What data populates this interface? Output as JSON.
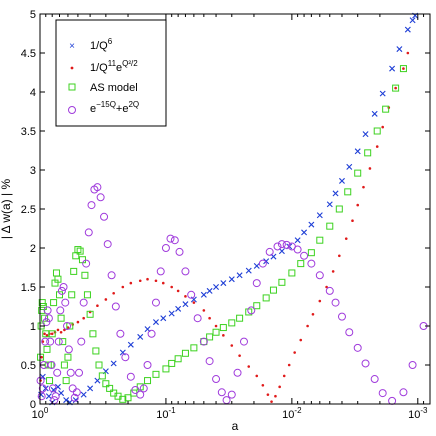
{
  "chart_data": {
    "type": "scatter",
    "title": "",
    "xlabel": "a",
    "ylabel": "| Δ w(a) | %",
    "x_scale": "log-reversed",
    "xlim": [
      1,
      0.0008
    ],
    "ylim": [
      0,
      5
    ],
    "x_ticks": [
      {
        "value": 1,
        "base": "10",
        "exp": "0"
      },
      {
        "value": 0.1,
        "base": "10",
        "exp": "-1"
      },
      {
        "value": 0.01,
        "base": "10",
        "exp": "-2"
      },
      {
        "value": 0.001,
        "base": "10",
        "exp": "-3"
      }
    ],
    "y_ticks": [
      "0",
      "0.5",
      "1",
      "1.5",
      "2",
      "2.5",
      "3",
      "3.5",
      "4",
      "4.5",
      "5"
    ],
    "y_tick_values": [
      0,
      0.5,
      1,
      1.5,
      2,
      2.5,
      3,
      3.5,
      4,
      4.5,
      5
    ],
    "grid": false,
    "legend_position": "top-left",
    "series": [
      {
        "name": "1/Q",
        "name_sup": "6",
        "marker": "x",
        "color": "#1f3fd6",
        "points": [
          [
            0.98,
            0.12
          ],
          [
            0.95,
            0.35
          ],
          [
            0.9,
            0.2
          ],
          [
            0.85,
            0.1
          ],
          [
            0.8,
            0.02
          ],
          [
            0.78,
            0.18
          ],
          [
            0.72,
            0.22
          ],
          [
            0.68,
            0.14
          ],
          [
            0.62,
            0.05
          ],
          [
            0.58,
            0.02
          ],
          [
            0.52,
            0.05
          ],
          [
            0.45,
            0.12
          ],
          [
            0.4,
            0.2
          ],
          [
            0.35,
            0.3
          ],
          [
            0.3,
            0.42
          ],
          [
            0.26,
            0.52
          ],
          [
            0.22,
            0.66
          ],
          [
            0.19,
            0.76
          ],
          [
            0.16,
            0.86
          ],
          [
            0.14,
            0.96
          ],
          [
            0.12,
            1.05
          ],
          [
            0.105,
            1.1
          ],
          [
            0.09,
            1.16
          ],
          [
            0.08,
            1.22
          ],
          [
            0.07,
            1.28
          ],
          [
            0.06,
            1.34
          ],
          [
            0.05,
            1.4
          ],
          [
            0.045,
            1.45
          ],
          [
            0.04,
            1.5
          ],
          [
            0.035,
            1.55
          ],
          [
            0.03,
            1.6
          ],
          [
            0.026,
            1.65
          ],
          [
            0.022,
            1.71
          ],
          [
            0.019,
            1.77
          ],
          [
            0.016,
            1.83
          ],
          [
            0.014,
            1.89
          ],
          [
            0.012,
            1.96
          ],
          [
            0.0105,
            2.02
          ],
          [
            0.009,
            2.1
          ],
          [
            0.008,
            2.2
          ],
          [
            0.007,
            2.3
          ],
          [
            0.006,
            2.42
          ],
          [
            0.005,
            2.56
          ],
          [
            0.0045,
            2.7
          ],
          [
            0.004,
            2.86
          ],
          [
            0.0035,
            3.04
          ],
          [
            0.003,
            3.24
          ],
          [
            0.0026,
            3.46
          ],
          [
            0.0022,
            3.72
          ],
          [
            0.0019,
            3.98
          ],
          [
            0.0016,
            4.3
          ],
          [
            0.0014,
            4.55
          ],
          [
            0.0012,
            4.8
          ],
          [
            0.0011,
            4.92
          ],
          [
            0.00105,
            4.98
          ]
        ]
      },
      {
        "name": "1/Q",
        "name_sup": "11",
        "name_tail": "e",
        "name_tail_sup": "Q²/2",
        "marker": "dot",
        "color": "#e01a1a",
        "points": [
          [
            0.99,
            0.3
          ],
          [
            0.97,
            0.6
          ],
          [
            0.95,
            0.8
          ],
          [
            0.92,
            0.9
          ],
          [
            0.88,
            0.88
          ],
          [
            0.84,
            0.9
          ],
          [
            0.8,
            0.9
          ],
          [
            0.76,
            0.92
          ],
          [
            0.72,
            0.95
          ],
          [
            0.68,
            0.92
          ],
          [
            0.64,
            0.95
          ],
          [
            0.6,
            0.98
          ],
          [
            0.55,
            1.02
          ],
          [
            0.5,
            1.05
          ],
          [
            0.45,
            1.1
          ],
          [
            0.4,
            1.18
          ],
          [
            0.35,
            1.26
          ],
          [
            0.3,
            1.34
          ],
          [
            0.26,
            1.42
          ],
          [
            0.22,
            1.5
          ],
          [
            0.19,
            1.55
          ],
          [
            0.16,
            1.58
          ],
          [
            0.14,
            1.6
          ],
          [
            0.12,
            1.58
          ],
          [
            0.105,
            1.55
          ],
          [
            0.09,
            1.5
          ],
          [
            0.08,
            1.45
          ],
          [
            0.07,
            1.38
          ],
          [
            0.06,
            1.3
          ],
          [
            0.05,
            1.2
          ],
          [
            0.045,
            1.1
          ],
          [
            0.04,
            1.0
          ],
          [
            0.035,
            0.88
          ],
          [
            0.03,
            0.75
          ],
          [
            0.026,
            0.62
          ],
          [
            0.022,
            0.48
          ],
          [
            0.019,
            0.36
          ],
          [
            0.017,
            0.24
          ],
          [
            0.0155,
            0.12
          ],
          [
            0.0145,
            0.03
          ],
          [
            0.0135,
            0.1
          ],
          [
            0.0125,
            0.22
          ],
          [
            0.0115,
            0.36
          ],
          [
            0.0105,
            0.5
          ],
          [
            0.0095,
            0.66
          ],
          [
            0.0085,
            0.82
          ],
          [
            0.0075,
            1.0
          ],
          [
            0.0068,
            1.15
          ],
          [
            0.006,
            1.32
          ],
          [
            0.0053,
            1.5
          ],
          [
            0.0047,
            1.7
          ],
          [
            0.0042,
            1.9
          ],
          [
            0.0037,
            2.12
          ],
          [
            0.0033,
            2.35
          ],
          [
            0.003,
            2.55
          ],
          [
            0.0027,
            2.78
          ],
          [
            0.0024,
            3.02
          ],
          [
            0.0021,
            3.3
          ],
          [
            0.0019,
            3.55
          ],
          [
            0.0017,
            3.8
          ],
          [
            0.0015,
            4.05
          ],
          [
            0.0013,
            4.3
          ],
          [
            0.0012,
            4.5
          ]
        ]
      },
      {
        "name": "AS model",
        "marker": "square",
        "color": "#3cd21f",
        "points": [
          [
            0.99,
            0.6
          ],
          [
            0.98,
            1.0
          ],
          [
            0.97,
            1.2
          ],
          [
            0.96,
            1.3
          ],
          [
            0.94,
            1.25
          ],
          [
            0.92,
            1.1
          ],
          [
            0.9,
            0.9
          ],
          [
            0.88,
            0.7
          ],
          [
            0.86,
            0.5
          ],
          [
            0.84,
            0.3
          ],
          [
            0.82,
            0.5
          ],
          [
            0.8,
            0.9
          ],
          [
            0.78,
            1.3
          ],
          [
            0.76,
            1.55
          ],
          [
            0.74,
            1.68
          ],
          [
            0.72,
            1.6
          ],
          [
            0.7,
            1.4
          ],
          [
            0.68,
            1.1
          ],
          [
            0.66,
            0.8
          ],
          [
            0.64,
            0.5
          ],
          [
            0.62,
            0.3
          ],
          [
            0.6,
            0.6
          ],
          [
            0.58,
            1.0
          ],
          [
            0.56,
            1.4
          ],
          [
            0.54,
            1.7
          ],
          [
            0.52,
            1.9
          ],
          [
            0.5,
            1.98
          ],
          [
            0.48,
            1.96
          ],
          [
            0.46,
            1.85
          ],
          [
            0.44,
            1.65
          ],
          [
            0.42,
            1.4
          ],
          [
            0.4,
            1.15
          ],
          [
            0.38,
            0.9
          ],
          [
            0.36,
            0.68
          ],
          [
            0.34,
            0.5
          ],
          [
            0.32,
            0.36
          ],
          [
            0.3,
            0.26
          ],
          [
            0.28,
            0.2
          ],
          [
            0.26,
            0.14
          ],
          [
            0.24,
            0.1
          ],
          [
            0.22,
            0.06
          ],
          [
            0.2,
            0.08
          ],
          [
            0.18,
            0.14
          ],
          [
            0.16,
            0.22
          ],
          [
            0.14,
            0.3
          ],
          [
            0.12,
            0.38
          ],
          [
            0.1,
            0.45
          ],
          [
            0.09,
            0.52
          ],
          [
            0.08,
            0.58
          ],
          [
            0.07,
            0.65
          ],
          [
            0.06,
            0.72
          ],
          [
            0.05,
            0.8
          ],
          [
            0.045,
            0.86
          ],
          [
            0.04,
            0.92
          ],
          [
            0.035,
            0.98
          ],
          [
            0.03,
            1.04
          ],
          [
            0.026,
            1.1
          ],
          [
            0.022,
            1.18
          ],
          [
            0.019,
            1.26
          ],
          [
            0.016,
            1.36
          ],
          [
            0.014,
            1.46
          ],
          [
            0.012,
            1.56
          ],
          [
            0.01,
            1.68
          ],
          [
            0.0085,
            1.8
          ],
          [
            0.007,
            1.94
          ],
          [
            0.006,
            2.1
          ],
          [
            0.005,
            2.28
          ],
          [
            0.0042,
            2.5
          ],
          [
            0.0036,
            2.72
          ],
          [
            0.003,
            2.96
          ],
          [
            0.0025,
            3.22
          ],
          [
            0.0021,
            3.5
          ],
          [
            0.0018,
            3.78
          ],
          [
            0.0015,
            4.05
          ],
          [
            0.0013,
            4.3
          ]
        ]
      },
      {
        "name": "e",
        "name_sup": "−15Q",
        "name_tail": "+e",
        "name_tail_sup": "2Q",
        "marker": "circle",
        "color": "#a03bdc",
        "points": [
          [
            0.99,
            0.3
          ],
          [
            0.97,
            0.1
          ],
          [
            0.95,
            0.2
          ],
          [
            0.93,
            0.5
          ],
          [
            0.91,
            0.8
          ],
          [
            0.89,
            1.05
          ],
          [
            0.87,
            1.2
          ],
          [
            0.85,
            1.1
          ],
          [
            0.83,
            0.8
          ],
          [
            0.81,
            0.5
          ],
          [
            0.79,
            0.2
          ],
          [
            0.77,
            0.05
          ],
          [
            0.75,
            0.1
          ],
          [
            0.73,
            0.4
          ],
          [
            0.71,
            0.8
          ],
          [
            0.69,
            1.2
          ],
          [
            0.67,
            1.45
          ],
          [
            0.65,
            1.5
          ],
          [
            0.63,
            1.3
          ],
          [
            0.61,
            1.0
          ],
          [
            0.59,
            0.7
          ],
          [
            0.57,
            0.4
          ],
          [
            0.55,
            0.2
          ],
          [
            0.53,
            0.08
          ],
          [
            0.51,
            0.15
          ],
          [
            0.49,
            0.4
          ],
          [
            0.47,
            0.8
          ],
          [
            0.45,
            1.3
          ],
          [
            0.43,
            1.8
          ],
          [
            0.41,
            2.2
          ],
          [
            0.39,
            2.55
          ],
          [
            0.37,
            2.75
          ],
          [
            0.35,
            2.78
          ],
          [
            0.33,
            2.65
          ],
          [
            0.31,
            2.4
          ],
          [
            0.29,
            2.05
          ],
          [
            0.27,
            1.65
          ],
          [
            0.25,
            1.25
          ],
          [
            0.23,
            0.9
          ],
          [
            0.21,
            0.6
          ],
          [
            0.19,
            0.35
          ],
          [
            0.175,
            0.18
          ],
          [
            0.16,
            0.12
          ],
          [
            0.15,
            0.2
          ],
          [
            0.14,
            0.5
          ],
          [
            0.13,
            0.9
          ],
          [
            0.12,
            1.3
          ],
          [
            0.11,
            1.7
          ],
          [
            0.1,
            2.0
          ],
          [
            0.092,
            2.12
          ],
          [
            0.085,
            2.1
          ],
          [
            0.078,
            1.95
          ],
          [
            0.07,
            1.7
          ],
          [
            0.063,
            1.4
          ],
          [
            0.056,
            1.1
          ],
          [
            0.05,
            0.8
          ],
          [
            0.045,
            0.55
          ],
          [
            0.04,
            0.32
          ],
          [
            0.036,
            0.15
          ],
          [
            0.033,
            0.05
          ],
          [
            0.03,
            0.12
          ],
          [
            0.027,
            0.4
          ],
          [
            0.024,
            0.8
          ],
          [
            0.021,
            1.2
          ],
          [
            0.019,
            1.55
          ],
          [
            0.017,
            1.8
          ],
          [
            0.015,
            1.95
          ],
          [
            0.013,
            2.02
          ],
          [
            0.012,
            2.05
          ],
          [
            0.011,
            2.04
          ],
          [
            0.01,
            2.02
          ],
          [
            0.009,
            1.98
          ],
          [
            0.008,
            1.9
          ],
          [
            0.007,
            1.8
          ],
          [
            0.006,
            1.65
          ],
          [
            0.005,
            1.45
          ],
          [
            0.0045,
            1.3
          ],
          [
            0.004,
            1.12
          ],
          [
            0.0035,
            0.92
          ],
          [
            0.003,
            0.72
          ],
          [
            0.0026,
            0.52
          ],
          [
            0.0022,
            0.32
          ],
          [
            0.0019,
            0.14
          ],
          [
            0.0016,
            0.04
          ],
          [
            0.0013,
            0.15
          ],
          [
            0.0011,
            0.5
          ],
          [
            0.0009,
            1.0
          ]
        ]
      }
    ]
  }
}
